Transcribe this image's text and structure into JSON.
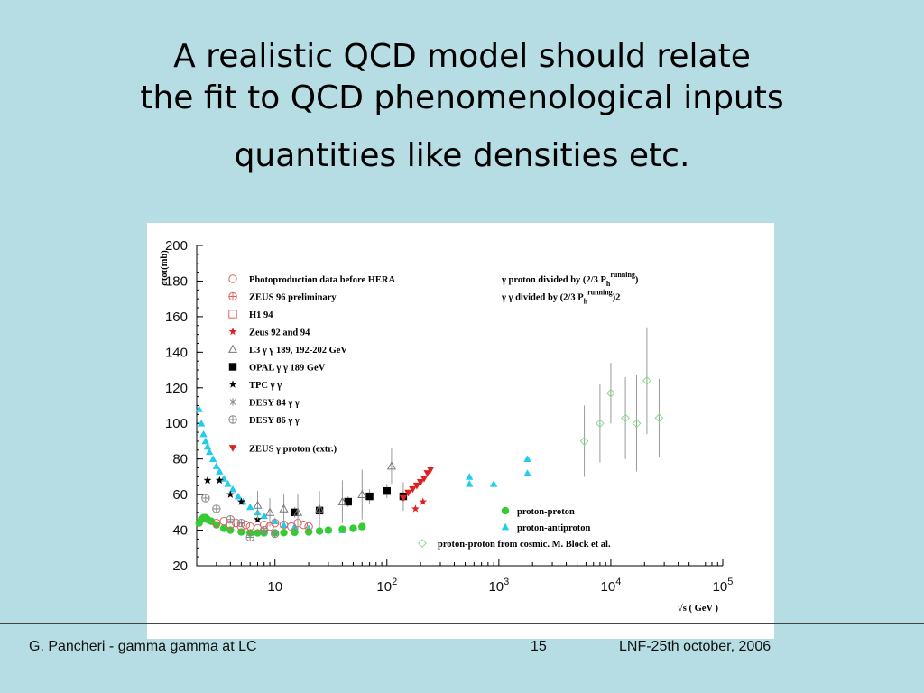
{
  "slide": {
    "title_line1": "A realistic QCD model should relate",
    "title_line2": "the fit to QCD phenomenological inputs",
    "title_line3": "quantities like densities etc."
  },
  "footer": {
    "left": "G. Pancheri - gamma gamma  at  LC",
    "page": "15",
    "right": "LNF-25th october, 2006"
  },
  "chart_data": {
    "type": "scatter",
    "title": "",
    "ylabel": "σtot(mb)",
    "xlabel": "√s ( GeV )",
    "log_x": true,
    "xlim": [
      2,
      100000
    ],
    "ylim": [
      20,
      200
    ],
    "x_tick_labels": [
      "10",
      "10^2",
      "10^3",
      "10^4",
      "10^5"
    ],
    "y_tick_labels": [
      "20",
      "40",
      "60",
      "80",
      "100",
      "120",
      "140",
      "160",
      "180",
      "200"
    ],
    "grid": false,
    "legend_left_placement": "top-left",
    "legend_left": [
      {
        "label": "Photoproduction data before HERA",
        "marker": "circle-open",
        "color": "#e06060"
      },
      {
        "label": "ZEUS 96 preliminary",
        "marker": "cross-circle",
        "color": "#e06060"
      },
      {
        "label": "H1 94",
        "marker": "square-open",
        "color": "#e06060"
      },
      {
        "label": "Zeus 92 and 94",
        "marker": "star",
        "color": "#e02020"
      },
      {
        "label": "L3 γ γ  189, 192-202 GeV",
        "marker": "triangle-open",
        "color": "#777777"
      },
      {
        "label": "OPAL  γ γ  189 GeV",
        "marker": "square-filled",
        "color": "#000000"
      },
      {
        "label": "TPC γ γ",
        "marker": "star",
        "color": "#000000"
      },
      {
        "label": "DESY 84 γ γ",
        "marker": "asterisk",
        "color": "#888888"
      },
      {
        "label": "DESY 86 γ γ",
        "marker": "cross-circle",
        "color": "#888888"
      },
      {
        "label": "ZEUS γ  proton (extr.)",
        "marker": "triangle-down",
        "color": "#e02020"
      }
    ],
    "legend_top_right": [
      {
        "label": "γ  proton divided  by (2/3 P",
        "sup": "running",
        "sub": "h",
        "tail": ")"
      },
      {
        "label": "γ γ  divided  by (2/3 P",
        "sup": "running",
        "sub": "h",
        "tail": ")2"
      }
    ],
    "legend_bottom_right": [
      {
        "label": "proton-proton",
        "marker": "circle-filled",
        "color": "#33cc33"
      },
      {
        "label": "proton-antiproton",
        "marker": "triangle-filled",
        "color": "#22ccee"
      },
      {
        "label": "proton-proton from cosmic. M. Block et al.",
        "marker": "diamond-open",
        "color": "#88dd88"
      }
    ],
    "series": [
      {
        "name": "proton-antiproton",
        "marker": "triangle-filled",
        "color": "#22ccee",
        "x": [
          2.1,
          2.2,
          2.3,
          2.4,
          2.5,
          2.6,
          2.8,
          3.0,
          3.2,
          3.5,
          3.8,
          4.2,
          4.7,
          5.2,
          6.0,
          7.0,
          8.0,
          10,
          12,
          15,
          20,
          25,
          30,
          40,
          50,
          60,
          546,
          546,
          900,
          1800,
          1800
        ],
        "y": [
          108,
          100,
          94,
          90,
          87,
          84,
          80,
          76,
          73,
          69,
          66,
          63,
          59,
          56,
          53,
          50,
          48,
          45,
          43,
          42,
          41,
          40,
          40,
          40,
          41,
          42,
          70,
          66,
          66,
          80,
          72
        ]
      },
      {
        "name": "proton-proton",
        "marker": "circle-filled",
        "color": "#33cc33",
        "x": [
          2.1,
          2.2,
          2.3,
          2.4,
          2.5,
          2.7,
          3.0,
          3.5,
          4.0,
          5.0,
          6.0,
          7.0,
          8.0,
          10,
          12,
          15,
          20,
          25,
          30,
          40,
          50,
          60
        ],
        "y": [
          44,
          46,
          47,
          47,
          46,
          45,
          43,
          41,
          40,
          39,
          38.5,
          38.5,
          38.5,
          38.5,
          38.6,
          38.8,
          39,
          39.5,
          40,
          40.5,
          41,
          42
        ]
      },
      {
        "name": "proton-proton from cosmic. M. Block et al.",
        "marker": "diamond-open",
        "color": "#88dd88",
        "x": [
          5800,
          8000,
          10000,
          13500,
          17000,
          21000,
          27000
        ],
        "y": [
          90,
          100,
          117,
          103,
          100,
          124,
          103
        ],
        "err": [
          20,
          22,
          17,
          23,
          27,
          30,
          22
        ]
      },
      {
        "name": "OPAL  γ γ  189 GeV",
        "marker": "square-filled",
        "color": "#000000",
        "x": [
          15,
          25,
          45,
          70,
          100,
          140
        ],
        "y": [
          50,
          51,
          56,
          59,
          62,
          59
        ],
        "err": [
          3,
          3,
          3,
          4,
          4,
          8
        ]
      },
      {
        "name": "ZEUS γ  proton (extr.)",
        "marker": "triangle-down",
        "color": "#e02020",
        "x": [
          140,
          155,
          170,
          185,
          200,
          215,
          230,
          245
        ],
        "y": [
          58,
          61,
          63,
          65,
          67,
          69,
          72,
          74
        ]
      },
      {
        "name": "Zeus 92 and 94",
        "marker": "star",
        "color": "#e02020",
        "x": [
          180,
          210
        ],
        "y": [
          52,
          56
        ]
      },
      {
        "name": "Photoproduction data before HERA",
        "marker": "circle-open",
        "color": "#e06060",
        "x": [
          3,
          3.5,
          4,
          4.5,
          5,
          5.5,
          6,
          7,
          8,
          9,
          10,
          12,
          14,
          16,
          18,
          20
        ],
        "y": [
          44,
          45,
          43,
          44,
          42,
          43,
          42,
          41,
          43,
          42,
          44,
          43,
          42,
          44,
          43,
          42
        ]
      },
      {
        "name": "TPC γ γ",
        "marker": "star",
        "color": "#000000",
        "x": [
          2.5,
          3.2,
          4,
          5,
          7
        ],
        "y": [
          68,
          68,
          60,
          56,
          46
        ]
      },
      {
        "name": "DESY 86 γ γ",
        "marker": "cross-circle",
        "color": "#888888",
        "x": [
          2.4,
          3,
          4,
          5,
          6,
          8,
          10
        ],
        "y": [
          58,
          52,
          46,
          44,
          36,
          40,
          38
        ]
      },
      {
        "name": "L3 γ γ  189, 192-202 GeV",
        "marker": "triangle-open",
        "color": "#777777",
        "x": [
          7,
          9,
          12,
          16,
          25,
          40,
          60,
          110
        ],
        "y": [
          54,
          50,
          52,
          50,
          52,
          56,
          60,
          76
        ],
        "err": [
          8,
          8,
          8,
          10,
          10,
          12,
          14,
          10
        ]
      }
    ]
  }
}
